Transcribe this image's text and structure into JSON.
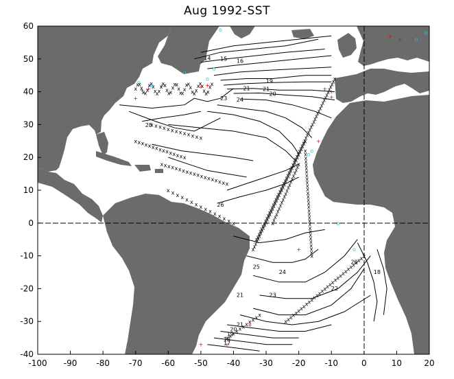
{
  "title": "Aug 1992-SST",
  "map": {
    "lon_range": [
      -100,
      20
    ],
    "lat_range": [
      -40,
      60
    ],
    "x_ticks": [
      "-100",
      "-90",
      "-80",
      "-70",
      "-60",
      "-50",
      "-40",
      "-30",
      "-20",
      "-10",
      "0",
      "10",
      "20"
    ],
    "y_ticks": [
      "60",
      "50",
      "40",
      "30",
      "20",
      "10",
      "0",
      "-10",
      "-20",
      "-30",
      "-40"
    ],
    "contour_labels": [
      {
        "text": "14",
        "lon": -48,
        "lat": 49.6
      },
      {
        "text": "15",
        "lon": -43,
        "lat": 49.4
      },
      {
        "text": "16",
        "lon": -38,
        "lat": 48.8
      },
      {
        "text": "19",
        "lon": -29,
        "lat": 42.6
      },
      {
        "text": "21",
        "lon": -36,
        "lat": 40.4
      },
      {
        "text": "21",
        "lon": -30,
        "lat": 40.2
      },
      {
        "text": "20",
        "lon": -28,
        "lat": 38.8
      },
      {
        "text": "24",
        "lon": -38,
        "lat": 37.0
      },
      {
        "text": "23",
        "lon": -43,
        "lat": 37.4
      },
      {
        "text": "28",
        "lon": -66,
        "lat": 29.2
      },
      {
        "text": "26",
        "lon": -44,
        "lat": 5.0
      },
      {
        "text": "25",
        "lon": -33,
        "lat": -14.0
      },
      {
        "text": "24",
        "lon": -25,
        "lat": -15.5
      },
      {
        "text": "22",
        "lon": -9,
        "lat": -20.5
      },
      {
        "text": "21",
        "lon": -38,
        "lat": -22.5
      },
      {
        "text": "20",
        "lon": -3,
        "lat": -12.5
      },
      {
        "text": "18",
        "lon": 4,
        "lat": -15.5
      },
      {
        "text": "23",
        "lon": -28,
        "lat": -22.5
      },
      {
        "text": "21",
        "lon": -38,
        "lat": -31.5
      },
      {
        "text": "20",
        "lon": -40,
        "lat": -33.0
      },
      {
        "text": "19",
        "lon": -41,
        "lat": -34.5
      },
      {
        "text": "18",
        "lon": -42,
        "lat": -36.0
      },
      {
        "text": "17",
        "lon": -42,
        "lat": -37.2
      }
    ],
    "colors": {
      "land": "#6b6b6b",
      "contour": "#000000",
      "obs_x": "#000000",
      "obs_red": "#dd0000",
      "obs_cyan": "#22c8d8"
    }
  }
}
